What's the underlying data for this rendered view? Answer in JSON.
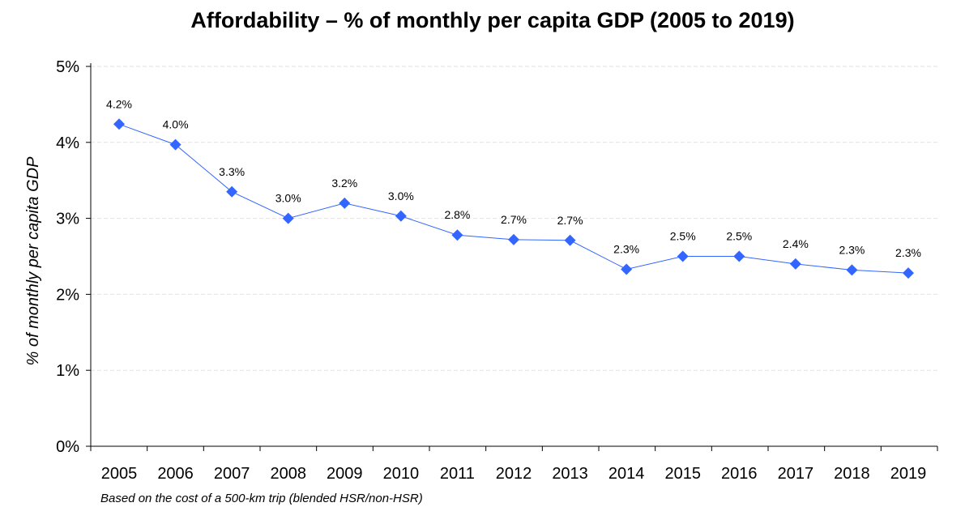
{
  "chart_data": {
    "type": "line",
    "title": "Affordability – % of monthly per capita GDP (2005 to 2019)",
    "ylabel": "% of monthly per capita GDP",
    "xlabel": "",
    "note": "Based on the cost of a 500-km trip (blended HSR/non-HSR)",
    "categories": [
      "2005",
      "2006",
      "2007",
      "2008",
      "2009",
      "2010",
      "2011",
      "2012",
      "2013",
      "2014",
      "2015",
      "2016",
      "2017",
      "2018",
      "2019"
    ],
    "values": [
      4.24,
      3.97,
      3.35,
      3.0,
      3.2,
      3.03,
      2.78,
      2.72,
      2.71,
      2.33,
      2.5,
      2.5,
      2.4,
      2.32,
      2.28
    ],
    "data_labels": [
      "4.2%",
      "4.0%",
      "3.3%",
      "3.0%",
      "3.2%",
      "3.0%",
      "2.8%",
      "2.7%",
      "2.7%",
      "2.3%",
      "2.5%",
      "2.5%",
      "2.4%",
      "2.3%",
      "2.3%"
    ],
    "yticks": [
      "0%",
      "1%",
      "2%",
      "3%",
      "4%",
      "5%"
    ],
    "ylim": [
      0,
      5
    ],
    "grid": "horizontal dashed",
    "legend": "none",
    "line_color": "#3366FF",
    "marker": "diamond"
  }
}
